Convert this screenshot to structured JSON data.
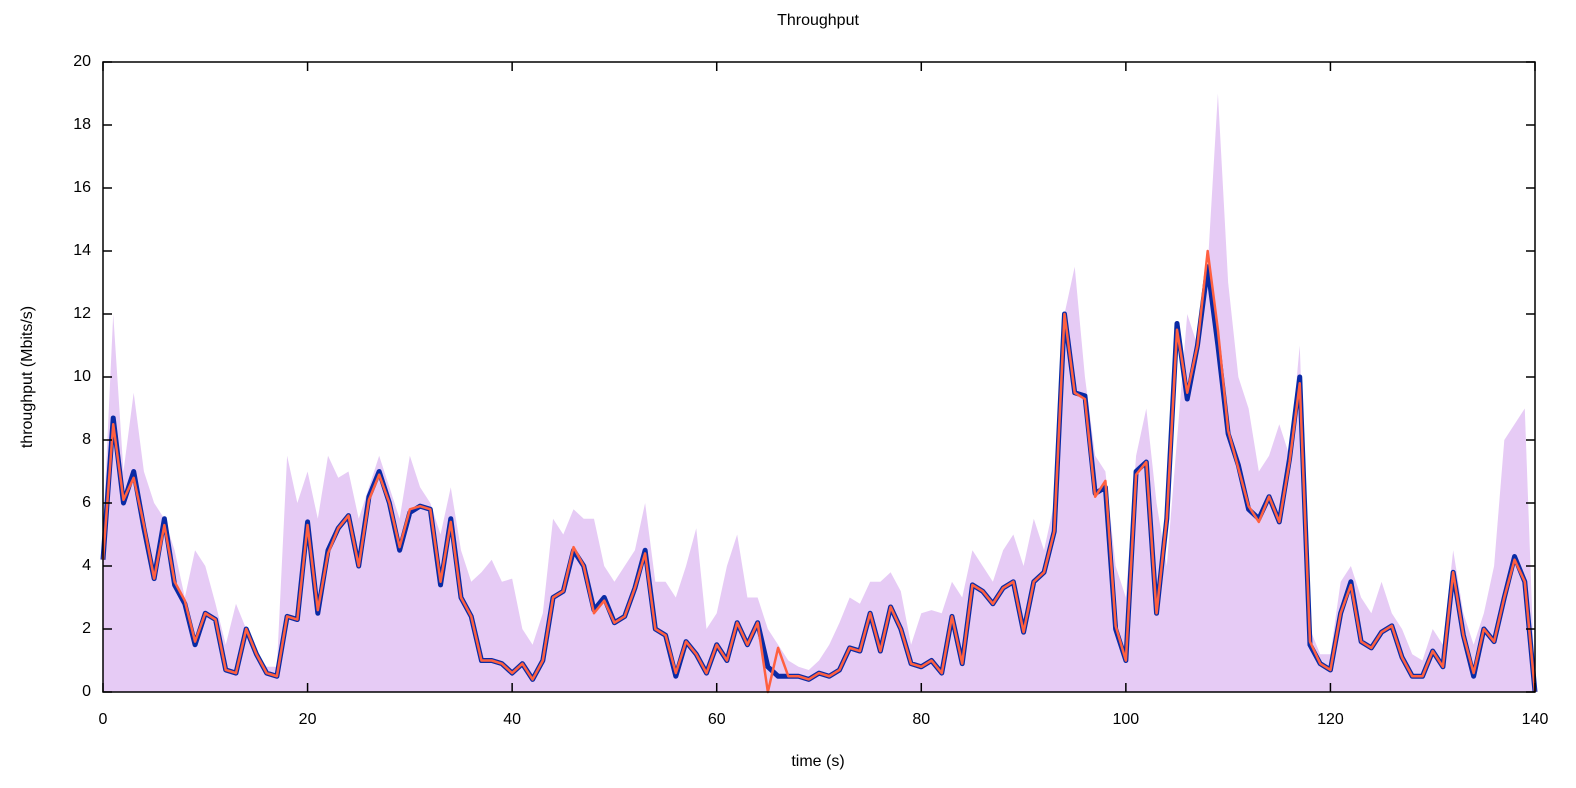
{
  "chart_data": {
    "type": "line",
    "title": "Throughput",
    "x_label": "time (s)",
    "y_label": "throughput (Mbits/s)",
    "x": [
      0,
      1,
      2,
      3,
      4,
      5,
      6,
      7,
      8,
      9,
      10,
      11,
      12,
      13,
      14,
      15,
      16,
      17,
      18,
      19,
      20,
      21,
      22,
      23,
      24,
      25,
      26,
      27,
      28,
      29,
      30,
      31,
      32,
      33,
      34,
      35,
      36,
      37,
      38,
      39,
      40,
      41,
      42,
      43,
      44,
      45,
      46,
      47,
      48,
      49,
      50,
      51,
      52,
      53,
      54,
      55,
      56,
      57,
      58,
      59,
      60,
      61,
      62,
      63,
      64,
      65,
      66,
      67,
      68,
      69,
      70,
      71,
      72,
      73,
      74,
      75,
      76,
      77,
      78,
      79,
      80,
      81,
      82,
      83,
      84,
      85,
      86,
      87,
      88,
      89,
      90,
      91,
      92,
      93,
      94,
      95,
      96,
      97,
      98,
      99,
      100,
      101,
      102,
      103,
      104,
      105,
      106,
      107,
      108,
      109,
      110,
      111,
      112,
      113,
      114,
      115,
      116,
      117,
      118,
      119,
      120,
      121,
      122,
      123,
      124,
      125,
      126,
      127,
      128,
      129,
      130,
      131,
      132,
      133,
      134,
      135,
      136,
      137,
      138,
      139,
      140
    ],
    "series": [
      {
        "kind": "area",
        "color": "#e6cbf5",
        "values": [
          5,
          12,
          7,
          9.5,
          7,
          6,
          5.5,
          4.5,
          3,
          4.5,
          4,
          2.8,
          1.5,
          2.8,
          2,
          1.2,
          0.8,
          0.8,
          7.5,
          6,
          7,
          5.5,
          7.5,
          6.8,
          7,
          5.5,
          6.5,
          7.5,
          6.5,
          5.5,
          7.5,
          6.5,
          6,
          5,
          6.5,
          4.5,
          3.5,
          3.8,
          4.2,
          3.5,
          3.6,
          2,
          1.5,
          2.5,
          5.5,
          5,
          5.8,
          5.5,
          5.5,
          4,
          3.5,
          4,
          4.5,
          6,
          3.5,
          3.5,
          3,
          4,
          5.2,
          2,
          2.5,
          4,
          5,
          3,
          3,
          2,
          1.5,
          1,
          0.8,
          0.7,
          1,
          1.5,
          2.2,
          3,
          2.8,
          3.5,
          3.5,
          3.8,
          3.2,
          1.5,
          2.5,
          2.6,
          2.5,
          3.5,
          3,
          4.5,
          4,
          3.5,
          4.5,
          5,
          4,
          5.5,
          4.5,
          6,
          12,
          13.5,
          10,
          7.5,
          7,
          4,
          3,
          7.5,
          9,
          6,
          4,
          8,
          12,
          11,
          13.5,
          19,
          13,
          10,
          9,
          7,
          7.5,
          8.5,
          7.5,
          11,
          2,
          1.2,
          1.2,
          3.5,
          4,
          3,
          2.5,
          3.5,
          2.5,
          2,
          1.2,
          1,
          2,
          1.5,
          4.5,
          2.5,
          1.5,
          2.5,
          4,
          8,
          8.5,
          9,
          0
        ]
      },
      {
        "kind": "line",
        "color": "#0a2aa5",
        "values": [
          4.2,
          8.7,
          6,
          7,
          5.2,
          3.6,
          5.5,
          3.4,
          2.8,
          1.5,
          2.5,
          2.3,
          0.7,
          0.6,
          2,
          1.2,
          0.6,
          0.5,
          2.4,
          2.3,
          5.4,
          2.5,
          4.5,
          5.2,
          5.6,
          4,
          6.2,
          7,
          6,
          4.5,
          5.7,
          5.9,
          5.8,
          3.4,
          5.5,
          3,
          2.4,
          1,
          1,
          0.9,
          0.6,
          0.9,
          0.4,
          1,
          3,
          3.2,
          4.5,
          4,
          2.6,
          3,
          2.2,
          2.4,
          3.3,
          4.5,
          2,
          1.8,
          0.5,
          1.6,
          1.2,
          0.6,
          1.5,
          1,
          2.2,
          1.5,
          2.2,
          0.8,
          0.5,
          0.5,
          0.5,
          0.4,
          0.6,
          0.5,
          0.7,
          1.4,
          1.3,
          2.5,
          1.3,
          2.7,
          2,
          0.9,
          0.8,
          1,
          0.6,
          2.4,
          0.9,
          3.4,
          3.2,
          2.8,
          3.3,
          3.5,
          1.9,
          3.5,
          3.8,
          5.1,
          12,
          9.5,
          9.4,
          6.3,
          6.5,
          2,
          1,
          7,
          7.3,
          2.5,
          5.5,
          11.7,
          9.3,
          11,
          13.5,
          11,
          8.2,
          7.2,
          5.8,
          5.5,
          6.2,
          5.4,
          7.4,
          10,
          1.5,
          0.9,
          0.7,
          2.5,
          3.5,
          1.6,
          1.4,
          1.9,
          2.1,
          1.1,
          0.5,
          0.5,
          1.3,
          0.8,
          3.8,
          1.8,
          0.5,
          2,
          1.6,
          3,
          4.3,
          3.5,
          0
        ]
      },
      {
        "kind": "line",
        "color": "#ff6040",
        "values": [
          4.2,
          8.5,
          6.1,
          6.8,
          5.3,
          3.6,
          5.3,
          3.5,
          2.9,
          1.6,
          2.5,
          2.3,
          0.7,
          0.6,
          2,
          1.2,
          0.6,
          0.5,
          2.4,
          2.3,
          5.3,
          2.6,
          4.4,
          5.2,
          5.6,
          4,
          6.1,
          6.9,
          6,
          4.6,
          5.8,
          5.9,
          5.8,
          3.5,
          5.4,
          3,
          2.4,
          1,
          1,
          0.9,
          0.6,
          0.9,
          0.4,
          1,
          3,
          3.2,
          4.6,
          4,
          2.5,
          2.9,
          2.2,
          2.4,
          3.3,
          4.4,
          2,
          1.8,
          0.6,
          1.6,
          1.2,
          0.6,
          1.5,
          1,
          2.2,
          1.5,
          2.2,
          0,
          1.4,
          0.5,
          0.5,
          0.4,
          0.6,
          0.5,
          0.7,
          1.4,
          1.3,
          2.5,
          1.3,
          2.7,
          2,
          0.9,
          0.8,
          1,
          0.6,
          2.4,
          0.9,
          3.4,
          3.2,
          2.8,
          3.3,
          3.5,
          1.9,
          3.5,
          3.8,
          5.1,
          12,
          9.5,
          9.3,
          6.2,
          6.7,
          2.1,
          1,
          6.9,
          7.3,
          2.5,
          5.5,
          11.5,
          9.5,
          11,
          14,
          11.5,
          8.3,
          7.1,
          5.9,
          5.4,
          6.2,
          5.4,
          7.3,
          9.8,
          1.6,
          0.9,
          0.7,
          2.5,
          3.4,
          1.6,
          1.4,
          1.9,
          2.1,
          1.1,
          0.5,
          0.5,
          1.3,
          0.8,
          3.8,
          1.8,
          0.6,
          2,
          1.6,
          3,
          4.2,
          3.5,
          0
        ]
      }
    ],
    "xlim": [
      0,
      140
    ],
    "xticks": [
      0,
      20,
      40,
      60,
      80,
      100,
      120,
      140
    ],
    "ylim": [
      0,
      20
    ],
    "yticks": [
      0,
      2,
      4,
      6,
      8,
      10,
      12,
      14,
      16,
      18,
      20
    ]
  }
}
